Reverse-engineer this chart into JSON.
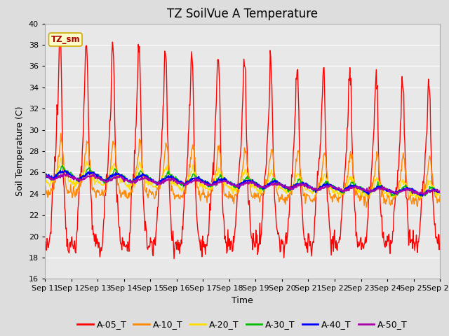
{
  "title": "TZ SoilVue A Temperature",
  "xlabel": "Time",
  "ylabel": "Soil Temperature (C)",
  "ylim": [
    16,
    40
  ],
  "yticks": [
    16,
    18,
    20,
    22,
    24,
    26,
    28,
    30,
    32,
    34,
    36,
    38,
    40
  ],
  "x_labels": [
    "Sep 11",
    "Sep 12",
    "Sep 13",
    "Sep 14",
    "Sep 15",
    "Sep 16",
    "Sep 17",
    "Sep 18",
    "Sep 19",
    "Sep 20",
    "Sep 21",
    "Sep 22",
    "Sep 23",
    "Sep 24",
    "Sep 25",
    "Sep 26"
  ],
  "annotation_text": "TZ_sm",
  "annotation_color": "#aa0000",
  "annotation_bg": "#ffffcc",
  "annotation_border": "#ccaa00",
  "series_names": [
    "A-05_T",
    "A-10_T",
    "A-20_T",
    "A-30_T",
    "A-40_T",
    "A-50_T"
  ],
  "series_colors": [
    "#ff0000",
    "#ff8800",
    "#ffdd00",
    "#00bb00",
    "#0000ff",
    "#aa00aa"
  ],
  "series_linewidths": [
    1.0,
    1.0,
    1.0,
    1.0,
    1.5,
    1.5
  ],
  "background_color": "#dddddd",
  "plot_bg": "#e8e8e8",
  "grid_color": "#ffffff",
  "title_fontsize": 12,
  "axis_label_fontsize": 9,
  "tick_fontsize": 8,
  "legend_fontsize": 9
}
